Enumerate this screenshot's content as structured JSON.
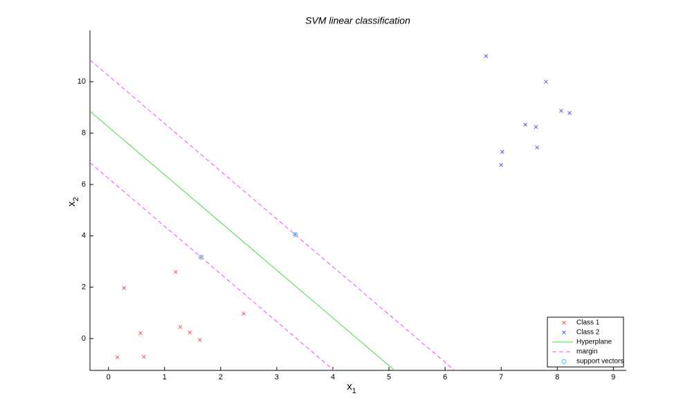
{
  "chart_data": {
    "type": "scatter",
    "title": "SVM linear classification",
    "xlabel": {
      "base": "x",
      "sub": "1"
    },
    "ylabel": {
      "base": "x",
      "sub": "2"
    },
    "xlim": [
      -0.33,
      9.23
    ],
    "ylim": [
      -1.24,
      12.0
    ],
    "xticks": [
      0,
      1,
      2,
      3,
      4,
      5,
      6,
      7,
      8,
      9
    ],
    "yticks": [
      0,
      2,
      4,
      6,
      8,
      10
    ],
    "legend": "lower right",
    "series": [
      {
        "name": "Class 1",
        "color": "#f05a5a",
        "marker": "x",
        "x": [
          0.16,
          0.28,
          0.57,
          0.63,
          1.2,
          1.28,
          1.45,
          1.63,
          1.65,
          2.41
        ],
        "values": [
          -0.73,
          1.97,
          0.21,
          -0.71,
          2.59,
          0.45,
          0.24,
          -0.05,
          3.17,
          0.97
        ]
      },
      {
        "name": "Class 2",
        "color": "#5a5ae6",
        "marker": "x",
        "x": [
          6.73,
          7.8,
          8.07,
          8.22,
          7.43,
          7.62,
          7.02,
          7.0,
          7.64,
          3.33
        ],
        "values": [
          11.0,
          10.0,
          8.87,
          8.78,
          8.33,
          8.24,
          7.27,
          6.76,
          7.44,
          4.05
        ]
      },
      {
        "name": "Hyperplane",
        "color": "#44dd44",
        "marker": "line",
        "style": "solid",
        "x": [
          -0.33,
          5.1
        ],
        "values": [
          8.85,
          -1.24
        ]
      },
      {
        "name": "margin",
        "color": "#ff44ff",
        "marker": "line",
        "style": "dashed",
        "x": [
          -0.33,
          4.02,
          null,
          -0.33,
          6.17
        ],
        "values": [
          6.85,
          -1.24,
          null,
          10.85,
          -1.24
        ]
      },
      {
        "name": "support vectors",
        "color": "#33ccff",
        "marker": "o",
        "x": [
          1.65,
          3.33
        ],
        "values": [
          3.17,
          4.05
        ]
      }
    ]
  }
}
